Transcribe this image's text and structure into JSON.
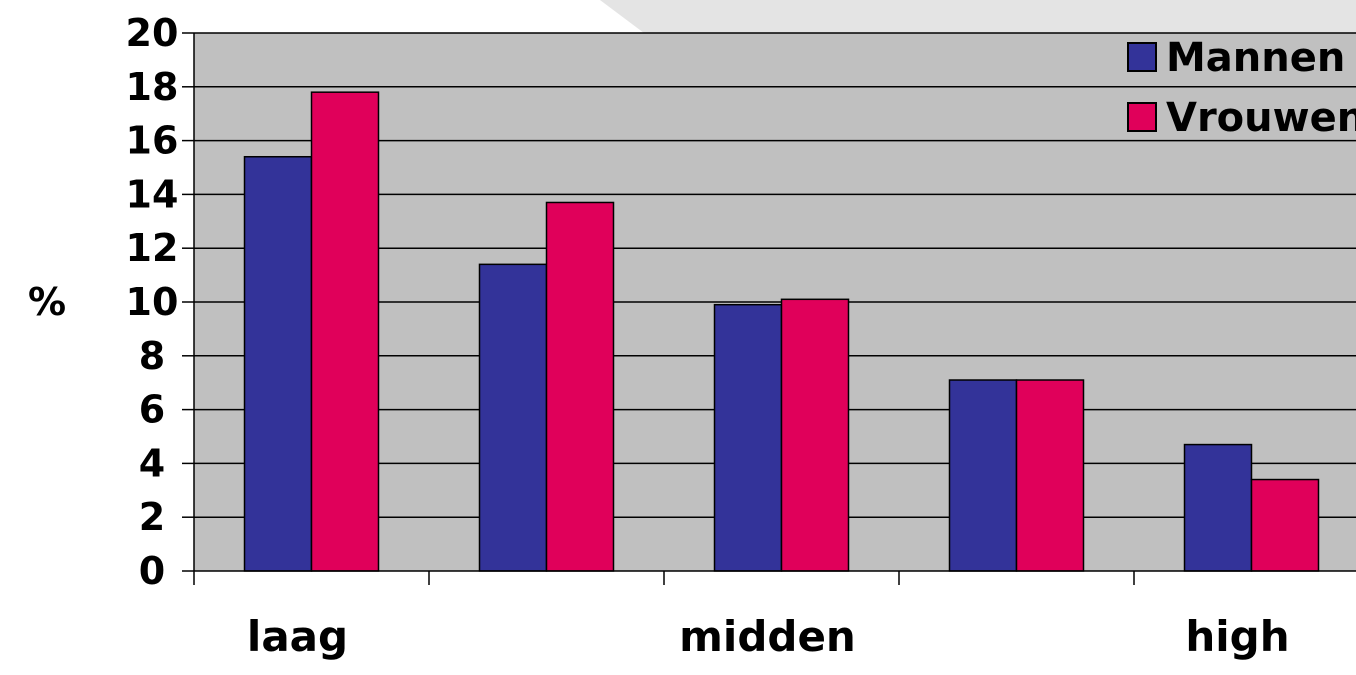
{
  "chart_data": {
    "type": "bar",
    "ylabel": "%",
    "ylim": [
      0,
      20
    ],
    "yticks": [
      0,
      2,
      4,
      6,
      8,
      10,
      12,
      14,
      16,
      18,
      20
    ],
    "categories": [
      "laag",
      "",
      "midden",
      "",
      "high"
    ],
    "series": [
      {
        "name": "Mannen",
        "color": "#333399",
        "values": [
          15.4,
          11.4,
          9.9,
          7.1,
          4.7
        ]
      },
      {
        "name": "Vrouwen",
        "color": "#E0005A",
        "values": [
          17.8,
          13.7,
          10.1,
          7.1,
          3.4
        ]
      }
    ],
    "grid": true,
    "plot_background": "#C0C0C0",
    "legend_position": "top-right"
  }
}
